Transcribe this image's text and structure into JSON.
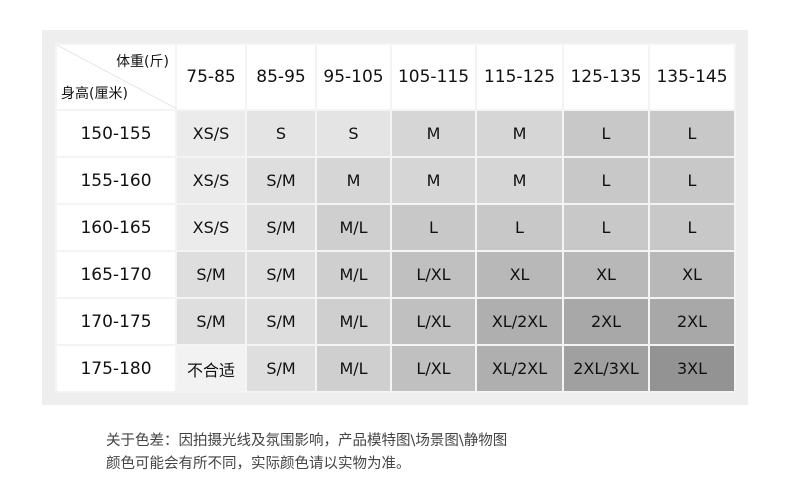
{
  "table": {
    "corner": {
      "weight_label": "体重(斤)",
      "height_label": "身高(厘米)"
    },
    "weights": [
      "75-85",
      "85-95",
      "95-105",
      "105-115",
      "115-125",
      "125-135",
      "135-145"
    ],
    "rows": [
      {
        "height": "150-155",
        "sizes": [
          "XS/S",
          "S",
          "S",
          "M",
          "M",
          "L",
          "L"
        ]
      },
      {
        "height": "155-160",
        "sizes": [
          "XS/S",
          "S/M",
          "M",
          "M",
          "M",
          "L",
          "L"
        ]
      },
      {
        "height": "160-165",
        "sizes": [
          "XS/S",
          "S/M",
          "M/L",
          "L",
          "L",
          "L",
          "L"
        ]
      },
      {
        "height": "165-170",
        "sizes": [
          "S/M",
          "S/M",
          "M/L",
          "L/XL",
          "XL",
          "XL",
          "XL"
        ]
      },
      {
        "height": "170-175",
        "sizes": [
          "S/M",
          "S/M",
          "M/L",
          "L/XL",
          "XL/2XL",
          "2XL",
          "2XL"
        ]
      },
      {
        "height": "175-180",
        "sizes": [
          "不合适",
          "S/M",
          "M/L",
          "L/XL",
          "XL/2XL",
          "2XL/3XL",
          "3XL"
        ]
      }
    ]
  },
  "size_colors": {
    "不合适": "#f2f2f2",
    "XS/S": "#ebebeb",
    "S": "#e4e4e4",
    "S/M": "#dedede",
    "M": "#d6d6d6",
    "M/L": "#cfcfcf",
    "L": "#c8c8c8",
    "L/XL": "#c0c0c0",
    "XL": "#b8b8b8",
    "XL/2XL": "#afafaf",
    "2XL": "#a8a8a8",
    "2XL/3XL": "#a0a0a0",
    "3XL": "#939393"
  },
  "note": {
    "line1": "关于色差：因拍摄光线及氛围影响，产品模特图\\场景图\\静物图",
    "line2": "颜色可能会有所不同，实际颜色请以实物为准。"
  }
}
